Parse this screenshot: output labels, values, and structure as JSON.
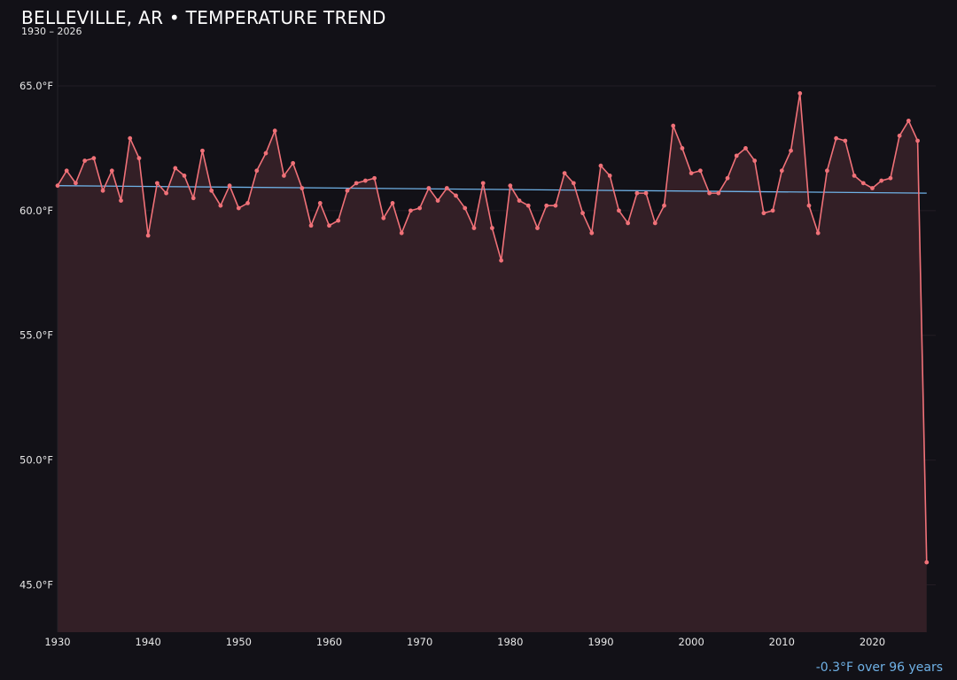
{
  "title": "BELLEVILLE, AR • TEMPERATURE TREND",
  "subtitle": "1930 – 2026",
  "trend_note": "-0.3°F over 96 years",
  "colors": {
    "background": "#121117",
    "series": "#f07178",
    "area_fill": "#331f26",
    "trend": "#6fb1e6",
    "grid": "#231d24"
  },
  "chart_data": {
    "type": "line",
    "title": "BELLEVILLE, AR • TEMPERATURE TREND",
    "subtitle": "1930 – 2026",
    "xlabel": "",
    "ylabel": "",
    "xlim": [
      1930,
      2027
    ],
    "ylim": [
      43.1,
      67.2
    ],
    "x_ticks": [
      1930,
      1940,
      1950,
      1960,
      1970,
      1980,
      1990,
      2000,
      2010,
      2020
    ],
    "x_tick_labels": [
      "1930",
      "1940",
      "1950",
      "1960",
      "1970",
      "1980",
      "1990",
      "2000",
      "2010",
      "2020"
    ],
    "y_ticks": [
      45,
      50,
      55,
      60,
      65
    ],
    "y_tick_labels": [
      "45.0°F",
      "50.0°F",
      "55.0°F",
      "60.0°F",
      "65.0°F"
    ],
    "grid": true,
    "area_fill": true,
    "series": [
      {
        "x": [
          1930,
          1931,
          1932,
          1933,
          1934,
          1935,
          1936,
          1937,
          1938,
          1939,
          1940,
          1941,
          1942,
          1943,
          1944,
          1945,
          1946,
          1947,
          1948,
          1949,
          1950,
          1951,
          1952,
          1953,
          1954,
          1955,
          1956,
          1957,
          1958,
          1959,
          1960,
          1961,
          1962,
          1963,
          1964,
          1965,
          1966,
          1967,
          1968,
          1969,
          1970,
          1971,
          1972,
          1973,
          1974,
          1975,
          1976,
          1977,
          1978,
          1979,
          1980,
          1981,
          1982,
          1983,
          1984,
          1985,
          1986,
          1987,
          1988,
          1989,
          1990,
          1991,
          1992,
          1993,
          1994,
          1995,
          1996,
          1997,
          1998,
          1999,
          2000,
          2001,
          2002,
          2003,
          2004,
          2005,
          2006,
          2007,
          2008,
          2009,
          2010,
          2011,
          2012,
          2013,
          2014,
          2015,
          2016,
          2017,
          2018,
          2019,
          2020,
          2021,
          2022,
          2023,
          2024,
          2025,
          2026
        ],
        "y": [
          61.0,
          61.6,
          61.1,
          62.0,
          62.1,
          60.8,
          61.6,
          60.4,
          62.9,
          62.1,
          59.0,
          61.1,
          60.7,
          61.7,
          61.4,
          60.5,
          62.4,
          60.8,
          60.2,
          61.0,
          60.1,
          60.3,
          61.6,
          62.3,
          63.2,
          61.4,
          61.9,
          60.9,
          59.4,
          60.3,
          59.4,
          59.6,
          60.8,
          61.1,
          61.2,
          61.3,
          59.7,
          60.3,
          59.1,
          60.0,
          60.1,
          60.9,
          60.4,
          60.9,
          60.6,
          60.1,
          59.3,
          61.1,
          59.3,
          58.0,
          61.0,
          60.4,
          60.2,
          59.3,
          60.2,
          60.2,
          61.5,
          61.1,
          59.9,
          59.1,
          61.8,
          61.4,
          60.0,
          59.5,
          60.7,
          60.7,
          59.5,
          60.2,
          63.4,
          62.5,
          61.5,
          61.6,
          60.7,
          60.7,
          61.3,
          62.2,
          62.5,
          62.0,
          59.9,
          60.0,
          61.6,
          62.4,
          64.7,
          60.2,
          59.1,
          61.6,
          62.9,
          62.8,
          61.4,
          61.1,
          60.9,
          61.2,
          61.3,
          63.0,
          63.6,
          62.8,
          45.9
        ]
      }
    ],
    "trendline": {
      "x": [
        1930,
        2026
      ],
      "y": [
        61.0,
        60.7
      ]
    }
  }
}
